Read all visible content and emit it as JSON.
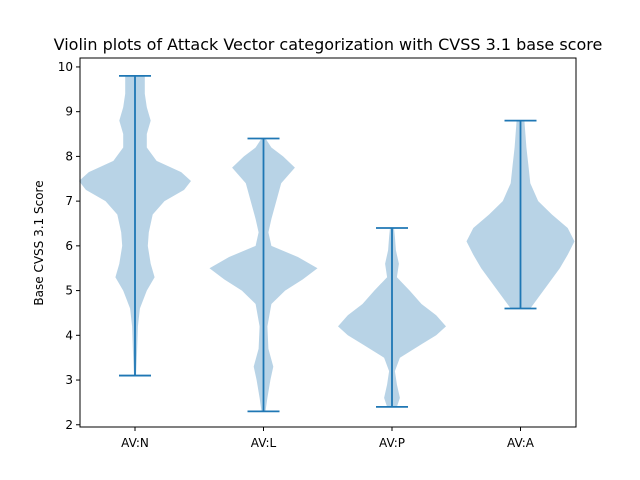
{
  "chart_data": {
    "type": "violin",
    "title": "Violin plots of Attack Vector categorization with CVSS 3.1 base score",
    "xlabel": "",
    "ylabel": "Base CVSS 3.1 Score",
    "ylim": [
      1.95,
      10.2
    ],
    "yticks": [
      2,
      3,
      4,
      5,
      6,
      7,
      8,
      9,
      10
    ],
    "grid": false,
    "legend": "none",
    "colors": {
      "fill": "#a6c8e0",
      "line": "#1f77b4"
    },
    "categories": [
      "AV:N",
      "AV:L",
      "AV:P",
      "AV:A"
    ],
    "violins": [
      {
        "name": "AV:N",
        "min": 3.1,
        "max": 9.8,
        "profile": [
          [
            3.1,
            0.01
          ],
          [
            3.6,
            0.02
          ],
          [
            4.2,
            0.03
          ],
          [
            4.6,
            0.05
          ],
          [
            5.0,
            0.12
          ],
          [
            5.3,
            0.2
          ],
          [
            5.6,
            0.16
          ],
          [
            6.0,
            0.13
          ],
          [
            6.3,
            0.14
          ],
          [
            6.7,
            0.18
          ],
          [
            7.0,
            0.3
          ],
          [
            7.25,
            0.5
          ],
          [
            7.45,
            0.57
          ],
          [
            7.65,
            0.47
          ],
          [
            7.9,
            0.22
          ],
          [
            8.2,
            0.12
          ],
          [
            8.5,
            0.12
          ],
          [
            8.8,
            0.16
          ],
          [
            9.1,
            0.12
          ],
          [
            9.4,
            0.1
          ],
          [
            9.8,
            0.1
          ]
        ]
      },
      {
        "name": "AV:L",
        "min": 2.3,
        "max": 8.4,
        "profile": [
          [
            2.3,
            0.02
          ],
          [
            2.6,
            0.04
          ],
          [
            3.0,
            0.07
          ],
          [
            3.3,
            0.1
          ],
          [
            3.7,
            0.05
          ],
          [
            4.2,
            0.04
          ],
          [
            4.7,
            0.08
          ],
          [
            5.0,
            0.22
          ],
          [
            5.25,
            0.4
          ],
          [
            5.5,
            0.55
          ],
          [
            5.75,
            0.35
          ],
          [
            6.0,
            0.08
          ],
          [
            6.3,
            0.05
          ],
          [
            6.6,
            0.08
          ],
          [
            7.0,
            0.13
          ],
          [
            7.4,
            0.18
          ],
          [
            7.75,
            0.32
          ],
          [
            8.0,
            0.2
          ],
          [
            8.2,
            0.08
          ],
          [
            8.4,
            0.02
          ]
        ]
      },
      {
        "name": "AV:P",
        "min": 2.4,
        "max": 6.4,
        "profile": [
          [
            2.4,
            0.05
          ],
          [
            2.6,
            0.08
          ],
          [
            2.9,
            0.05
          ],
          [
            3.2,
            0.03
          ],
          [
            3.5,
            0.08
          ],
          [
            3.8,
            0.3
          ],
          [
            4.0,
            0.45
          ],
          [
            4.2,
            0.55
          ],
          [
            4.45,
            0.45
          ],
          [
            4.7,
            0.3
          ],
          [
            5.0,
            0.18
          ],
          [
            5.3,
            0.05
          ],
          [
            5.6,
            0.07
          ],
          [
            5.9,
            0.04
          ],
          [
            6.2,
            0.03
          ],
          [
            6.4,
            0.02
          ]
        ]
      },
      {
        "name": "AV:A",
        "min": 4.6,
        "max": 8.8,
        "profile": [
          [
            4.6,
            0.1
          ],
          [
            4.9,
            0.2
          ],
          [
            5.2,
            0.3
          ],
          [
            5.5,
            0.4
          ],
          [
            5.8,
            0.48
          ],
          [
            6.1,
            0.55
          ],
          [
            6.4,
            0.48
          ],
          [
            6.7,
            0.32
          ],
          [
            7.0,
            0.18
          ],
          [
            7.4,
            0.1
          ],
          [
            7.8,
            0.08
          ],
          [
            8.2,
            0.06
          ],
          [
            8.5,
            0.05
          ],
          [
            8.8,
            0.04
          ]
        ]
      }
    ]
  }
}
